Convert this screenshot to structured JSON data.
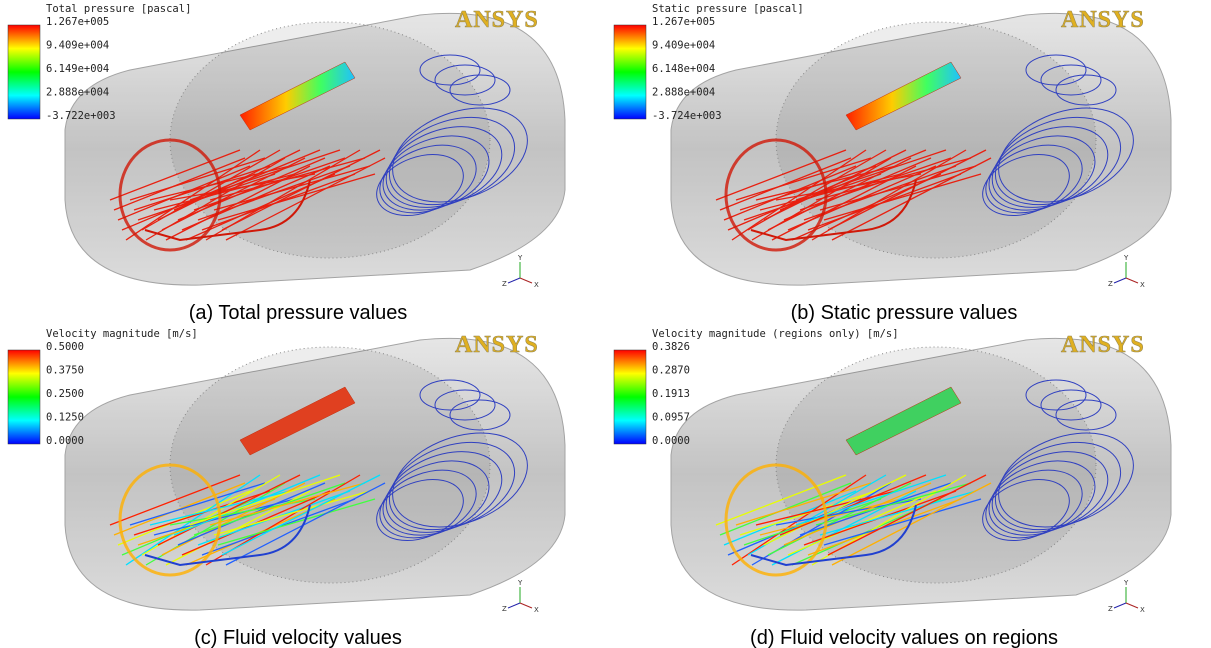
{
  "panels": [
    {
      "legend": {
        "title": "Total pressure [pascal]",
        "labels": [
          "1.267e+005",
          "9.409e+004",
          "6.149e+004",
          "2.888e+004",
          "-3.722e+003"
        ]
      },
      "logo": "ANSYS",
      "axes": [
        "Y",
        "Z",
        "X"
      ],
      "caption": "(a) Total pressure values"
    },
    {
      "legend": {
        "title": "Static pressure [pascal]",
        "labels": [
          "1.267e+005",
          "9.409e+004",
          "6.148e+004",
          "2.888e+004",
          "-3.724e+003"
        ]
      },
      "logo": "ANSYS",
      "axes": [
        "Y",
        "Z",
        "X"
      ],
      "caption": "(b) Static pressure values"
    },
    {
      "legend": {
        "title": "Velocity magnitude [m/s]",
        "labels": [
          "0.5000",
          "0.3750",
          "0.2500",
          "0.1250",
          "0.0000"
        ]
      },
      "logo": "ANSYS",
      "axes": [
        "Y",
        "Z",
        "X"
      ],
      "caption": "(c) Fluid velocity values"
    },
    {
      "legend": {
        "title": "Velocity magnitude (regions only) [m/s]",
        "labels": [
          "0.3826",
          "0.2870",
          "0.1913",
          "0.0957",
          "0.0000"
        ]
      },
      "logo": "ANSYS",
      "axes": [
        "Y",
        "Z",
        "X"
      ],
      "caption": "(d) Fluid velocity values on regions"
    }
  ]
}
